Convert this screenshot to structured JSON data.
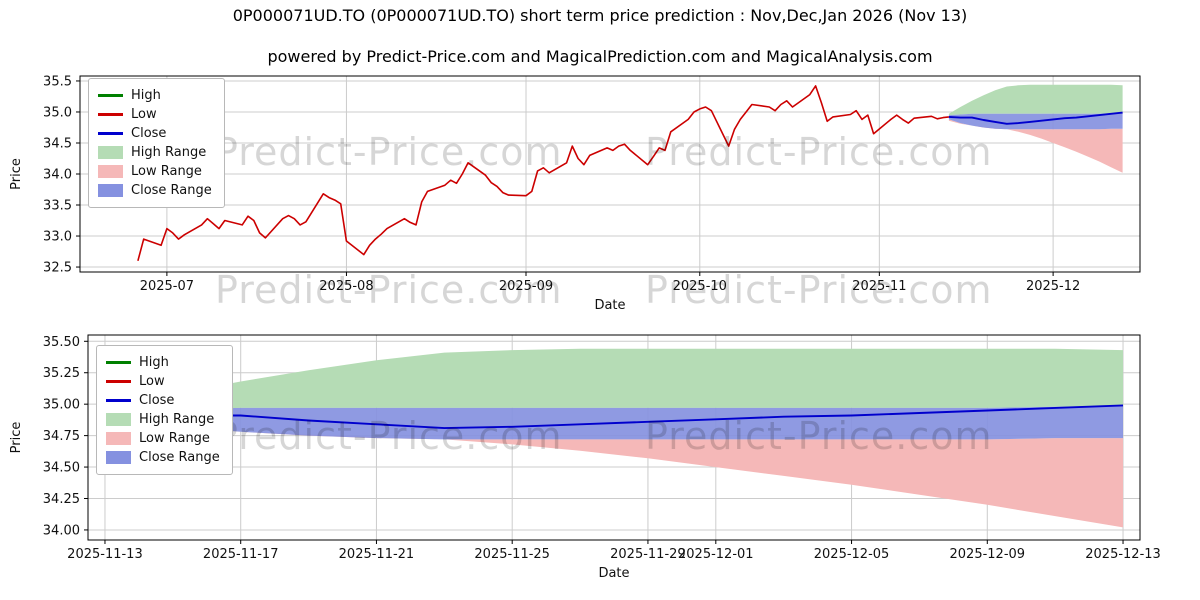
{
  "header": {
    "title": "0P000071UD.TO (0P000071UD.TO) short term price prediction : Nov,Dec,Jan 2026 (Nov 13)",
    "subtitle": "powered by Predict-Price.com and MagicalPrediction.com and MagicalAnalysis.com"
  },
  "watermark": {
    "text": "Predict-Price.com"
  },
  "colors": {
    "high": "#008000",
    "low": "#cc0000",
    "close": "#0000cd",
    "high_range": "#b5dcb5",
    "low_range": "#f5b8b8",
    "close_range": "#8591e0",
    "grid": "#cccccc",
    "axis": "#000000",
    "text": "#111111"
  },
  "legend": [
    {
      "label": "High",
      "color": "high",
      "kind": "line"
    },
    {
      "label": "Low",
      "color": "low",
      "kind": "line"
    },
    {
      "label": "Close",
      "color": "close",
      "kind": "line"
    },
    {
      "label": "High Range",
      "color": "high_range",
      "kind": "patch"
    },
    {
      "label": "Low Range",
      "color": "low_range",
      "kind": "patch"
    },
    {
      "label": "Close Range",
      "color": "close_range",
      "kind": "patch"
    }
  ],
  "chart_data": [
    {
      "id": "overview",
      "type": "line",
      "title": "",
      "xlabel": "Date",
      "ylabel": "Price",
      "xlim": [
        "2025-06-16",
        "2025-12-16"
      ],
      "ylim": [
        32.42,
        35.58
      ],
      "ydec": 1,
      "yticks": [
        32.5,
        33.0,
        33.5,
        34.0,
        34.5,
        35.0,
        35.5
      ],
      "xticks": [
        {
          "date": "2025-07-01",
          "label": "2025-07"
        },
        {
          "date": "2025-08-01",
          "label": "2025-08"
        },
        {
          "date": "2025-09-01",
          "label": "2025-09"
        },
        {
          "date": "2025-10-01",
          "label": "2025-10"
        },
        {
          "date": "2025-11-01",
          "label": "2025-11"
        },
        {
          "date": "2025-12-01",
          "label": "2025-12"
        }
      ],
      "history": {
        "name": "Low",
        "dates": [
          "2025-06-26",
          "2025-06-27",
          "2025-06-30",
          "2025-07-01",
          "2025-07-02",
          "2025-07-03",
          "2025-07-04",
          "2025-07-07",
          "2025-07-08",
          "2025-07-09",
          "2025-07-10",
          "2025-07-11",
          "2025-07-14",
          "2025-07-15",
          "2025-07-16",
          "2025-07-17",
          "2025-07-18",
          "2025-07-21",
          "2025-07-22",
          "2025-07-23",
          "2025-07-24",
          "2025-07-25",
          "2025-07-28",
          "2025-07-29",
          "2025-07-30",
          "2025-07-31",
          "2025-08-01",
          "2025-08-04",
          "2025-08-05",
          "2025-08-06",
          "2025-08-07",
          "2025-08-08",
          "2025-08-11",
          "2025-08-12",
          "2025-08-13",
          "2025-08-14",
          "2025-08-15",
          "2025-08-18",
          "2025-08-19",
          "2025-08-20",
          "2025-08-21",
          "2025-08-22",
          "2025-08-25",
          "2025-08-26",
          "2025-08-27",
          "2025-08-28",
          "2025-08-29",
          "2025-09-01",
          "2025-09-02",
          "2025-09-03",
          "2025-09-04",
          "2025-09-05",
          "2025-09-08",
          "2025-09-09",
          "2025-09-10",
          "2025-09-11",
          "2025-09-12",
          "2025-09-15",
          "2025-09-16",
          "2025-09-17",
          "2025-09-18",
          "2025-09-19",
          "2025-09-22",
          "2025-09-23",
          "2025-09-24",
          "2025-09-25",
          "2025-09-26",
          "2025-09-29",
          "2025-09-30",
          "2025-10-01",
          "2025-10-02",
          "2025-10-03",
          "2025-10-06",
          "2025-10-07",
          "2025-10-08",
          "2025-10-09",
          "2025-10-10",
          "2025-10-13",
          "2025-10-14",
          "2025-10-15",
          "2025-10-16",
          "2025-10-17",
          "2025-10-20",
          "2025-10-21",
          "2025-10-22",
          "2025-10-23",
          "2025-10-24",
          "2025-10-27",
          "2025-10-28",
          "2025-10-29",
          "2025-10-30",
          "2025-10-31",
          "2025-11-03",
          "2025-11-04",
          "2025-11-05",
          "2025-11-06",
          "2025-11-07",
          "2025-11-10",
          "2025-11-11",
          "2025-11-12",
          "2025-11-13"
        ],
        "values": [
          32.6,
          32.95,
          32.85,
          33.12,
          33.05,
          32.95,
          33.02,
          33.18,
          33.28,
          33.2,
          33.12,
          33.25,
          33.18,
          33.32,
          33.25,
          33.05,
          32.97,
          33.28,
          33.33,
          33.28,
          33.18,
          33.23,
          33.68,
          33.62,
          33.58,
          33.52,
          32.92,
          32.7,
          32.85,
          32.95,
          33.03,
          33.12,
          33.28,
          33.22,
          33.18,
          33.55,
          33.72,
          33.82,
          33.9,
          33.85,
          34.0,
          34.18,
          33.98,
          33.86,
          33.8,
          33.7,
          33.66,
          33.65,
          33.72,
          34.05,
          34.1,
          34.02,
          34.18,
          34.45,
          34.25,
          34.15,
          34.3,
          34.42,
          34.38,
          34.45,
          34.48,
          34.38,
          34.15,
          34.28,
          34.42,
          34.38,
          34.68,
          34.88,
          35.0,
          35.05,
          35.08,
          35.02,
          34.45,
          34.72,
          34.88,
          35.0,
          35.12,
          35.08,
          35.02,
          35.12,
          35.18,
          35.08,
          35.28,
          35.42,
          35.15,
          34.85,
          34.92,
          34.96,
          35.02,
          34.88,
          34.95,
          34.65,
          34.88,
          34.95,
          34.88,
          34.82,
          34.9,
          34.93,
          34.89,
          34.91,
          34.92
        ]
      },
      "forecast_ref": "detail"
    },
    {
      "id": "detail",
      "type": "area",
      "title": "",
      "xlabel": "Date",
      "ylabel": "Price",
      "xlim": [
        "2025-11-12T12:00",
        "2025-12-13T12:00"
      ],
      "ylim": [
        33.92,
        35.55
      ],
      "ydec": 2,
      "yticks": [
        34.0,
        34.25,
        34.5,
        34.75,
        35.0,
        35.25,
        35.5
      ],
      "xticks": [
        {
          "date": "2025-11-13",
          "label": "2025-11-13"
        },
        {
          "date": "2025-11-17",
          "label": "2025-11-17"
        },
        {
          "date": "2025-11-21",
          "label": "2025-11-21"
        },
        {
          "date": "2025-11-25",
          "label": "2025-11-25"
        },
        {
          "date": "2025-11-29",
          "label": "2025-11-29"
        },
        {
          "date": "2025-12-01",
          "label": "2025-12-01"
        },
        {
          "date": "2025-12-05",
          "label": "2025-12-05"
        },
        {
          "date": "2025-12-09",
          "label": "2025-12-09"
        },
        {
          "date": "2025-12-13",
          "label": "2025-12-13"
        }
      ],
      "forecast": {
        "dates": [
          "2025-11-13",
          "2025-11-15",
          "2025-11-17",
          "2025-11-19",
          "2025-11-21",
          "2025-11-23",
          "2025-11-25",
          "2025-11-27",
          "2025-11-29",
          "2025-12-01",
          "2025-12-03",
          "2025-12-05",
          "2025-12-07",
          "2025-12-09",
          "2025-12-11",
          "2025-12-13"
        ],
        "close": [
          34.92,
          34.91,
          34.91,
          34.87,
          34.84,
          34.81,
          34.82,
          34.84,
          34.86,
          34.88,
          34.9,
          34.91,
          34.93,
          34.95,
          34.97,
          34.99
        ],
        "close_top": [
          34.95,
          34.96,
          34.97,
          34.97,
          34.97,
          34.97,
          34.97,
          34.97,
          34.97,
          34.97,
          34.97,
          34.97,
          34.97,
          34.97,
          34.98,
          34.99
        ],
        "close_bottom": [
          34.88,
          34.82,
          34.78,
          34.75,
          34.73,
          34.72,
          34.72,
          34.72,
          34.72,
          34.72,
          34.72,
          34.72,
          34.72,
          34.72,
          34.73,
          34.73
        ],
        "high_top": [
          34.97,
          35.08,
          35.18,
          35.27,
          35.35,
          35.41,
          35.43,
          35.44,
          35.44,
          35.44,
          35.44,
          35.44,
          35.44,
          35.44,
          35.44,
          35.43
        ],
        "low_bottom": [
          34.86,
          34.81,
          34.78,
          34.76,
          34.74,
          34.72,
          34.68,
          34.63,
          34.57,
          34.5,
          34.43,
          34.36,
          34.28,
          34.2,
          34.11,
          34.02
        ]
      }
    }
  ]
}
